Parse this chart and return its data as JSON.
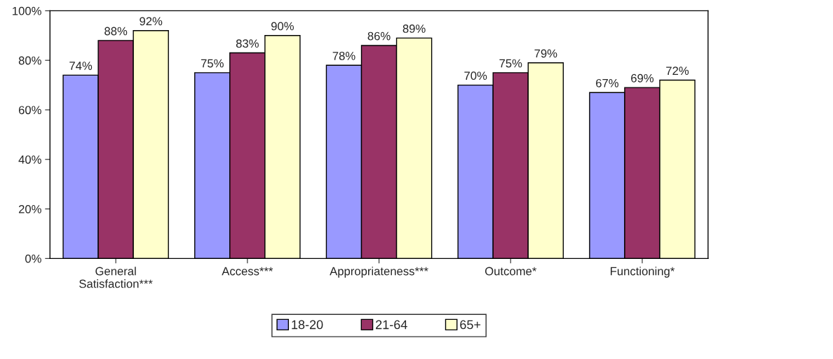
{
  "chart_data": {
    "type": "bar",
    "categories": [
      "General\nSatisfaction***",
      "Access***",
      "Appropriateness***",
      "Outcome*",
      "Functioning*"
    ],
    "series": [
      {
        "name": "18-20",
        "color": "#9999ff",
        "values": [
          74,
          75,
          78,
          70,
          67
        ],
        "value_labels": [
          "74%",
          "75%",
          "78%",
          "70%",
          "67%"
        ]
      },
      {
        "name": "21-64",
        "color": "#993366",
        "values": [
          88,
          83,
          86,
          75,
          69
        ],
        "value_labels": [
          "88%",
          "83%",
          "86%",
          "75%",
          "69%"
        ]
      },
      {
        "name": "65+",
        "color": "#ffffcc",
        "values": [
          92,
          90,
          89,
          79,
          72
        ],
        "value_labels": [
          "92%",
          "90%",
          "89%",
          "79%",
          "72%"
        ]
      }
    ],
    "ylim": [
      0,
      100
    ],
    "yticks": [
      {
        "value": 0,
        "label": "0%"
      },
      {
        "value": 20,
        "label": "20%"
      },
      {
        "value": 40,
        "label": "40%"
      },
      {
        "value": 60,
        "label": "60%"
      },
      {
        "value": 80,
        "label": "80%"
      },
      {
        "value": 100,
        "label": "100%"
      }
    ],
    "grid": false,
    "legend": "bottom"
  }
}
